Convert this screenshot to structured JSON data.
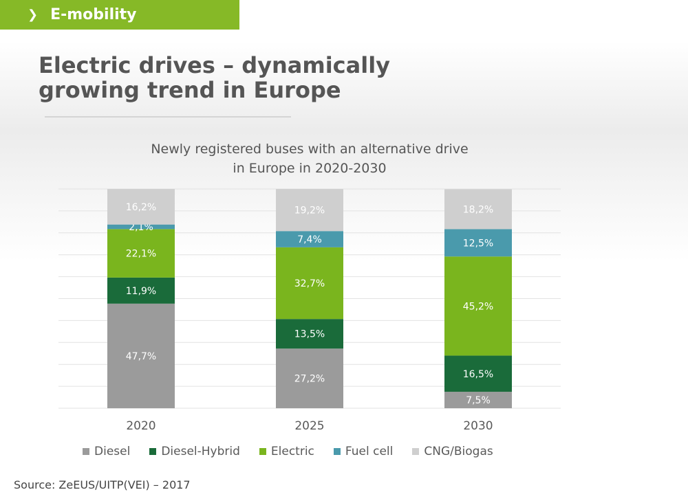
{
  "header": {
    "chevron": "❯",
    "section_label": "E-mobility"
  },
  "page_title": "Electric drives – dynamically growing trend in Europe",
  "source": "Source:  ZeEUS/UITP(VEI) – 2017",
  "chart_data": {
    "type": "bar",
    "stacked": true,
    "title": "Newly registered buses with an alternative drive in Europe in 2020-2030",
    "title_lines": [
      "Newly registered buses with an alternative drive",
      "in Europe in 2020-2030"
    ],
    "categories": [
      "2020",
      "2025",
      "2030"
    ],
    "ylim": [
      0,
      100
    ],
    "grid": true,
    "legend_position": "bottom",
    "series": [
      {
        "name": "Diesel",
        "color": "#9b9b9b",
        "values": [
          47.7,
          27.2,
          7.5
        ],
        "labels": [
          "47,7%",
          "27,2%",
          "7,5%"
        ]
      },
      {
        "name": "Diesel-Hybrid",
        "color": "#1a6b3a",
        "values": [
          11.9,
          13.5,
          16.5
        ],
        "labels": [
          "11,9%",
          "13,5%",
          "16,5%"
        ]
      },
      {
        "name": "Electric",
        "color": "#7ab51e",
        "values": [
          22.1,
          32.7,
          45.2
        ],
        "labels": [
          "22,1%",
          "32,7%",
          "45,2%"
        ]
      },
      {
        "name": "Fuel cell",
        "color": "#4a9aac",
        "values": [
          2.1,
          7.4,
          12.5
        ],
        "labels": [
          "2,1%",
          "7,4%",
          "12,5%"
        ]
      },
      {
        "name": "CNG/Biogas",
        "color": "#cfcfcf",
        "values": [
          16.2,
          19.2,
          18.2
        ],
        "labels": [
          "16,2%",
          "19,2%",
          "18,2%"
        ]
      }
    ]
  }
}
